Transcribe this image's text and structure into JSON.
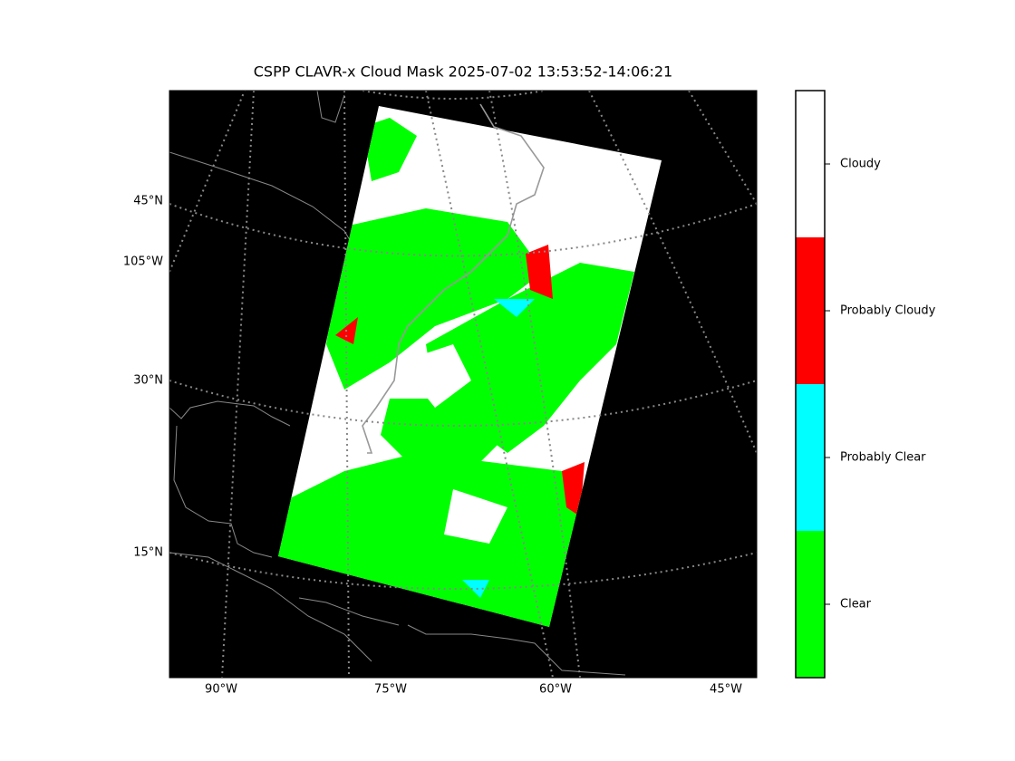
{
  "title": "CSPP CLAVR-x Cloud Mask 2025-07-02 13:53:52-14:06:21",
  "map": {
    "lat_labels": [
      "45°N",
      "105°W",
      "30°N",
      "15°N"
    ],
    "lon_labels": [
      "90°W",
      "75°W",
      "60°W",
      "45°W"
    ]
  },
  "colorbar": {
    "labels": [
      "Clear",
      "Probably Clear",
      "Probably Cloudy",
      "Cloudy"
    ],
    "colors": [
      "#00ff00",
      "#00ffff",
      "#ff0000",
      "#ffffff"
    ]
  }
}
